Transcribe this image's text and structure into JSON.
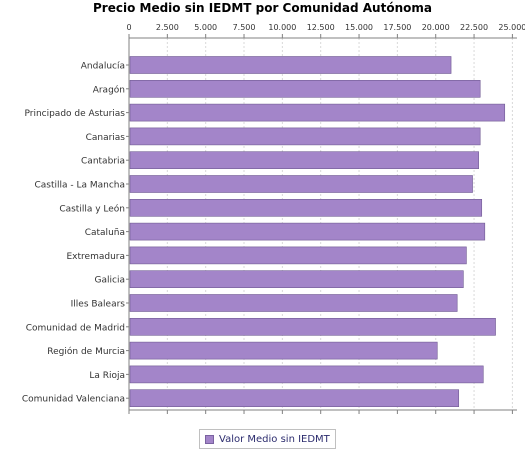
{
  "chart_data": {
    "type": "bar",
    "orientation": "horizontal",
    "title": "Precio Medio sin IEDMT por Comunidad Autónoma",
    "xlabel": "",
    "ylabel": "",
    "xlim": [
      0,
      25300
    ],
    "ticks": [
      "0",
      "2.500",
      "5.000",
      "7.500",
      "10.000",
      "12.500",
      "15.000",
      "17.500",
      "20.000",
      "22.500",
      "25.000"
    ],
    "tick_values": [
      0,
      2500,
      5000,
      7500,
      10000,
      12500,
      15000,
      17500,
      20000,
      22500,
      25000
    ],
    "categories": [
      "Andalucía",
      "Aragón",
      "Principado de Asturias",
      "Canarias",
      "Cantabria",
      "Castilla - La Mancha",
      "Castilla y León",
      "Cataluña",
      "Extremadura",
      "Galicia",
      "Illes Balears",
      "Comunidad de Madrid",
      "Región de Murcia",
      "La Rioja",
      "Comunidad Valenciana"
    ],
    "series": [
      {
        "name": "Valor Medio sin IEDMT",
        "color": "#a385c9",
        "values": [
          21000,
          22900,
          24500,
          22900,
          22800,
          22400,
          23000,
          23200,
          22000,
          21800,
          21400,
          23900,
          20100,
          23100,
          21500
        ]
      }
    ],
    "grid": true,
    "legend_position": "bottom"
  }
}
